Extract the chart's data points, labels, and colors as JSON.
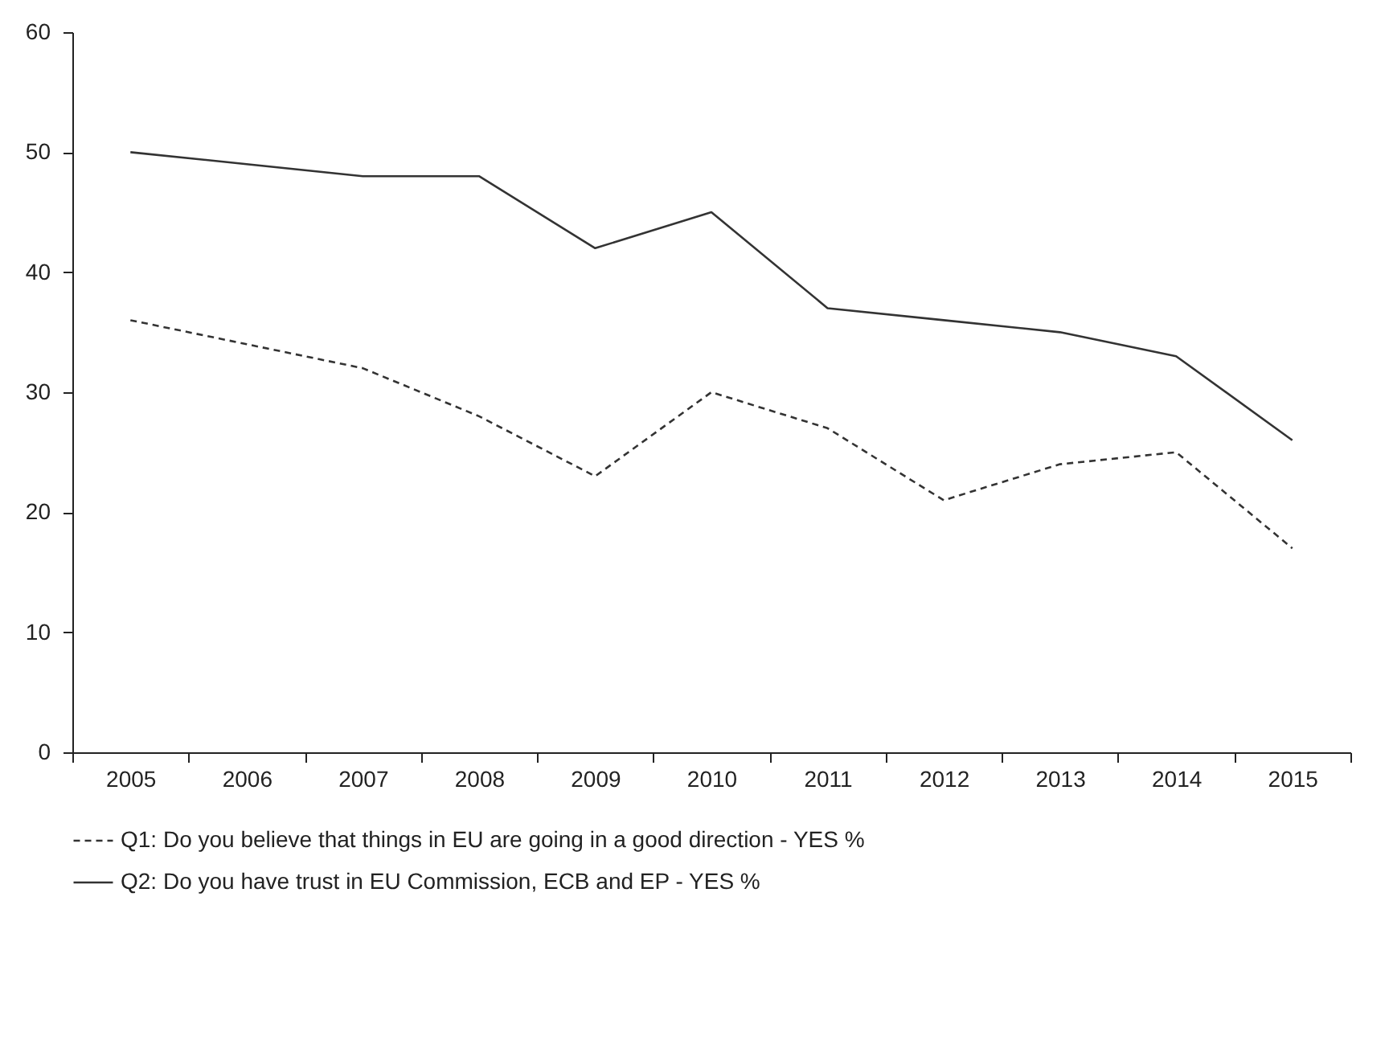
{
  "chart_data": {
    "type": "line",
    "categories": [
      "2005",
      "2006",
      "2007",
      "2008",
      "2009",
      "2010",
      "2011",
      "2012",
      "2013",
      "2014",
      "2015"
    ],
    "series": [
      {
        "name": "Q1: Do you believe that things in EU are going in a good direction - YES %",
        "color": "#333333",
        "line_style": "dashed",
        "values": [
          36,
          34,
          32,
          28,
          23,
          30,
          27,
          21,
          24,
          25,
          17
        ]
      },
      {
        "name": "Q2: Do you have trust in EU Commission, ECB and EP - YES %",
        "color": "#333333",
        "line_style": "solid",
        "values": [
          50,
          49,
          48,
          48,
          42,
          45,
          37,
          36,
          35,
          33,
          26
        ]
      }
    ],
    "ylim": [
      0,
      60
    ],
    "yticks": [
      0,
      10,
      20,
      30,
      40,
      50,
      60
    ],
    "grid": false,
    "legend": "bottom",
    "marker": "none"
  }
}
